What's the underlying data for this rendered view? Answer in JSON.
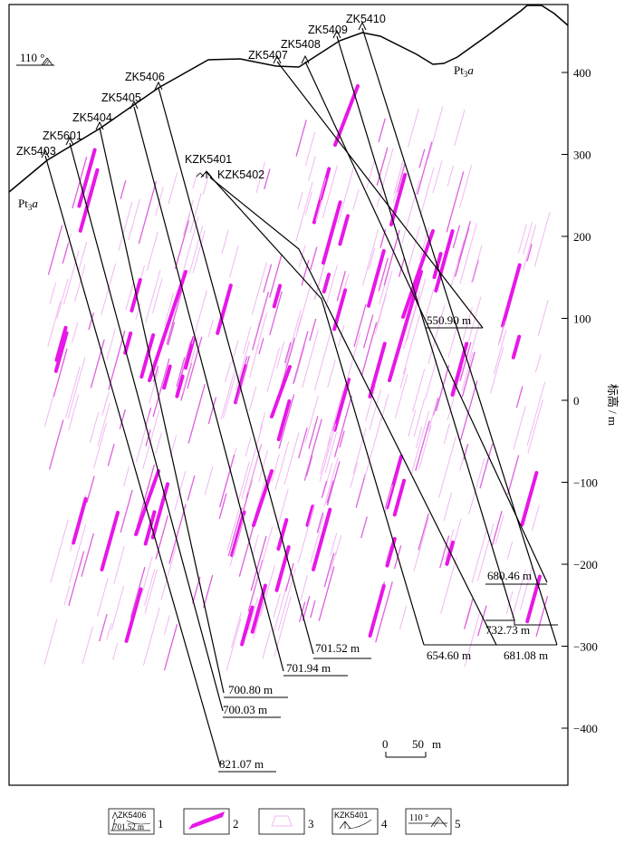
{
  "orientation_label": "110 °",
  "rock_unit_labels": [
    "Pt3a",
    "Pt3a"
  ],
  "boreholes": [
    {
      "name": "ZK5403",
      "depth": "821.07  m"
    },
    {
      "name": "ZK5601",
      "depth": "700.03  m"
    },
    {
      "name": "ZK5404",
      "depth": "700.80  m"
    },
    {
      "name": "ZK5405",
      "depth": "701.94  m"
    },
    {
      "name": "ZK5406",
      "depth": "701.52  m"
    },
    {
      "name": "ZK5407",
      "depth": "550.90  m"
    },
    {
      "name": "ZK5408",
      "depth": "680.46  m"
    },
    {
      "name": "ZK5409",
      "depth": "732.73  m"
    },
    {
      "name": "ZK5410",
      "depth": "681.08  m"
    }
  ],
  "adits": [
    {
      "name": "KZK5401",
      "depth": "654.60  m"
    },
    {
      "name": "KZK5402"
    }
  ],
  "axis": {
    "label": "标高 / m",
    "ticks": [
      "400",
      "300",
      "200",
      "100",
      "0",
      "−100",
      "−200",
      "−300",
      "−400"
    ]
  },
  "scale_bar": {
    "zero": "0",
    "value": "50",
    "unit": "m"
  },
  "legend": [
    {
      "number": "1",
      "sample_name": "ZK5406",
      "sample_depth": "701.52  m"
    },
    {
      "number": "2"
    },
    {
      "number": "3"
    },
    {
      "number": "4",
      "sample_name": "KZK5401"
    },
    {
      "number": "5",
      "sample_angle": "110 °"
    }
  ],
  "colors": {
    "vein_thick": "#e816e8",
    "vein_mid": "#e060e0",
    "vein_thin": "#f2b8f2",
    "line": "#000000"
  }
}
